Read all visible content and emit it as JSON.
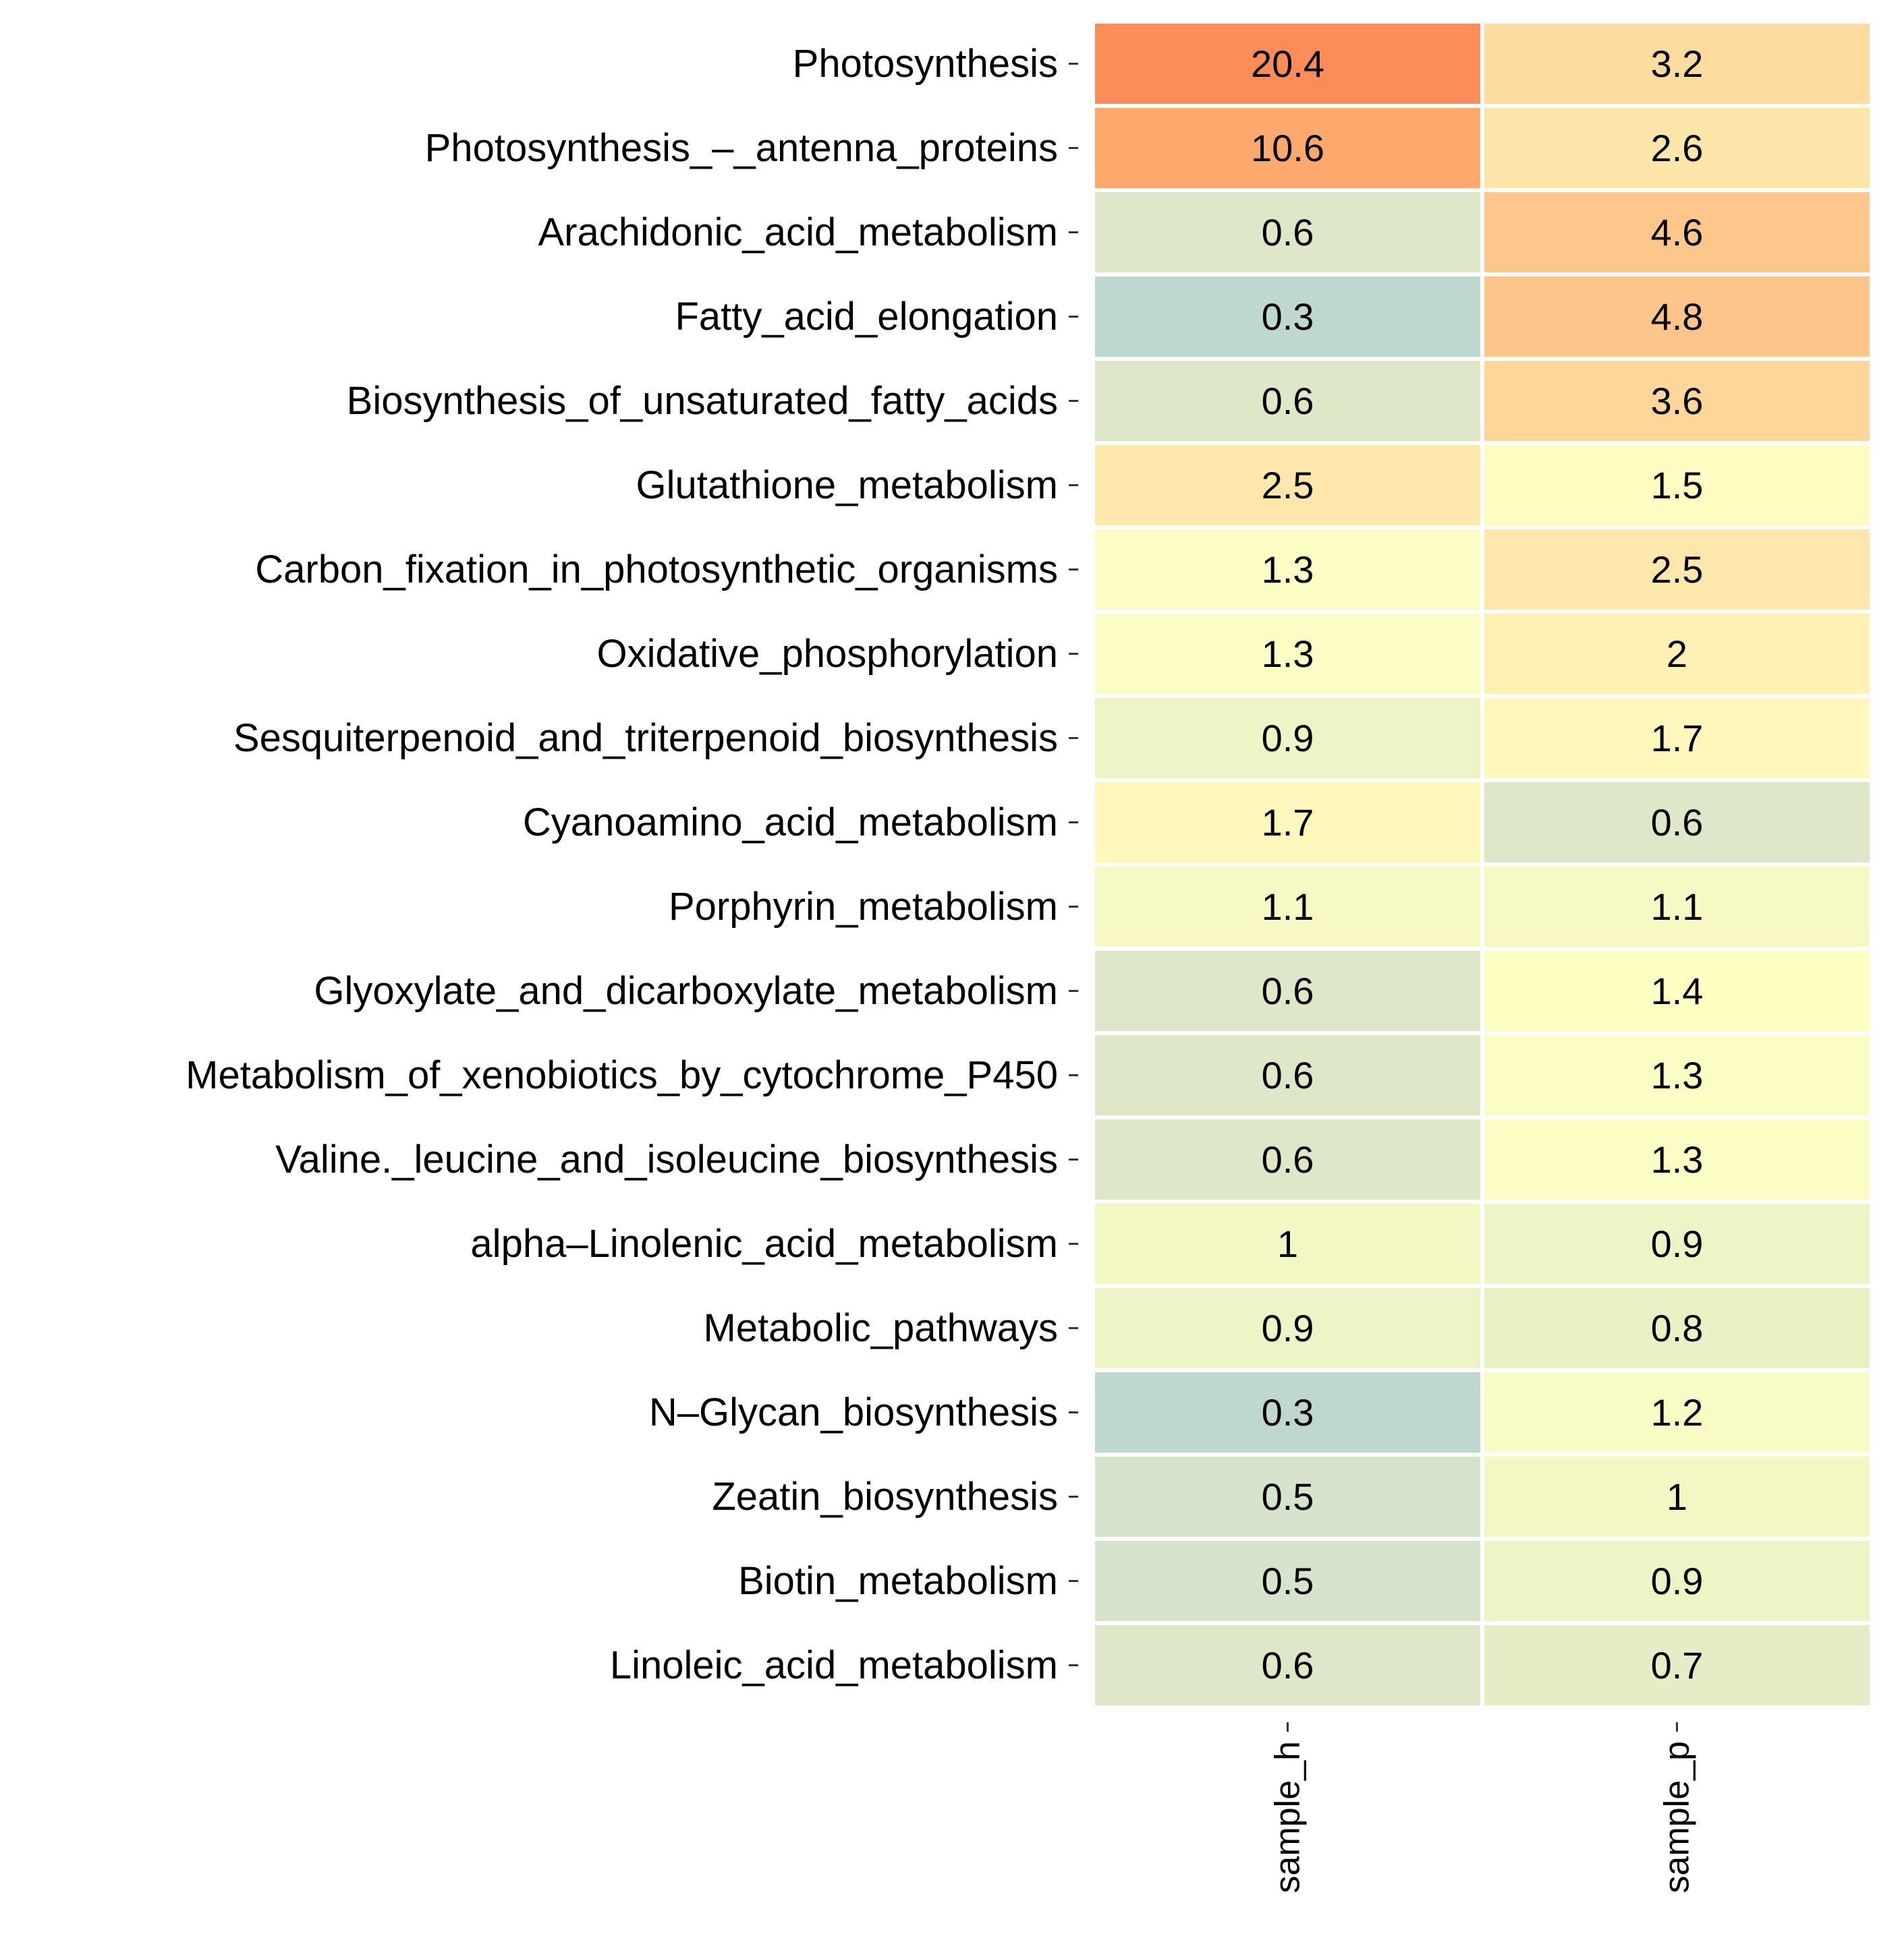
{
  "chart_data": {
    "type": "heatmap",
    "title": "",
    "xlabel": "",
    "ylabel": "",
    "columns": [
      "sample_h",
      "sample_p"
    ],
    "rows": [
      "Photosynthesis",
      "Photosynthesis_–_antenna_proteins",
      "Arachidonic_acid_metabolism",
      "Fatty_acid_elongation",
      "Biosynthesis_of_unsaturated_fatty_acids",
      "Glutathione_metabolism",
      "Carbon_fixation_in_photosynthetic_organisms",
      "Oxidative_phosphorylation",
      "Sesquiterpenoid_and_triterpenoid_biosynthesis",
      "Cyanoamino_acid_metabolism",
      "Porphyrin_metabolism",
      "Glyoxylate_and_dicarboxylate_metabolism",
      "Metabolism_of_xenobiotics_by_cytochrome_P450",
      "Valine._leucine_and_isoleucine_biosynthesis",
      "alpha–Linolenic_acid_metabolism",
      "Metabolic_pathways",
      "N–Glycan_biosynthesis",
      "Zeatin_biosynthesis",
      "Biotin_metabolism",
      "Linoleic_acid_metabolism"
    ],
    "values": [
      [
        20.4,
        3.2
      ],
      [
        10.6,
        2.6
      ],
      [
        0.6,
        4.6
      ],
      [
        0.3,
        4.8
      ],
      [
        0.6,
        3.6
      ],
      [
        2.5,
        1.5
      ],
      [
        1.3,
        2.5
      ],
      [
        1.3,
        2
      ],
      [
        0.9,
        1.7
      ],
      [
        1.7,
        0.6
      ],
      [
        1.1,
        1.1
      ],
      [
        0.6,
        1.4
      ],
      [
        0.6,
        1.3
      ],
      [
        0.6,
        1.3
      ],
      [
        1,
        0.9
      ],
      [
        0.9,
        0.8
      ],
      [
        0.3,
        1.2
      ],
      [
        0.5,
        1
      ],
      [
        0.5,
        0.9
      ],
      [
        0.6,
        0.7
      ]
    ],
    "color_scale": {
      "scale": "log",
      "stops": [
        {
          "value": 0.3,
          "color": "#bed8d0"
        },
        {
          "value": 0.5,
          "color": "#d6e3cd"
        },
        {
          "value": 0.7,
          "color": "#e4edc6"
        },
        {
          "value": 1.0,
          "color": "#f2f7c4"
        },
        {
          "value": 1.4,
          "color": "#ffffc4"
        },
        {
          "value": 2.0,
          "color": "#fff0b4"
        },
        {
          "value": 3.0,
          "color": "#fee0a4"
        },
        {
          "value": 4.8,
          "color": "#fdc58a"
        },
        {
          "value": 10.6,
          "color": "#fda86c"
        },
        {
          "value": 20.4,
          "color": "#fc8c58"
        }
      ]
    },
    "grid_color": "#ffffff",
    "legend": "none"
  }
}
